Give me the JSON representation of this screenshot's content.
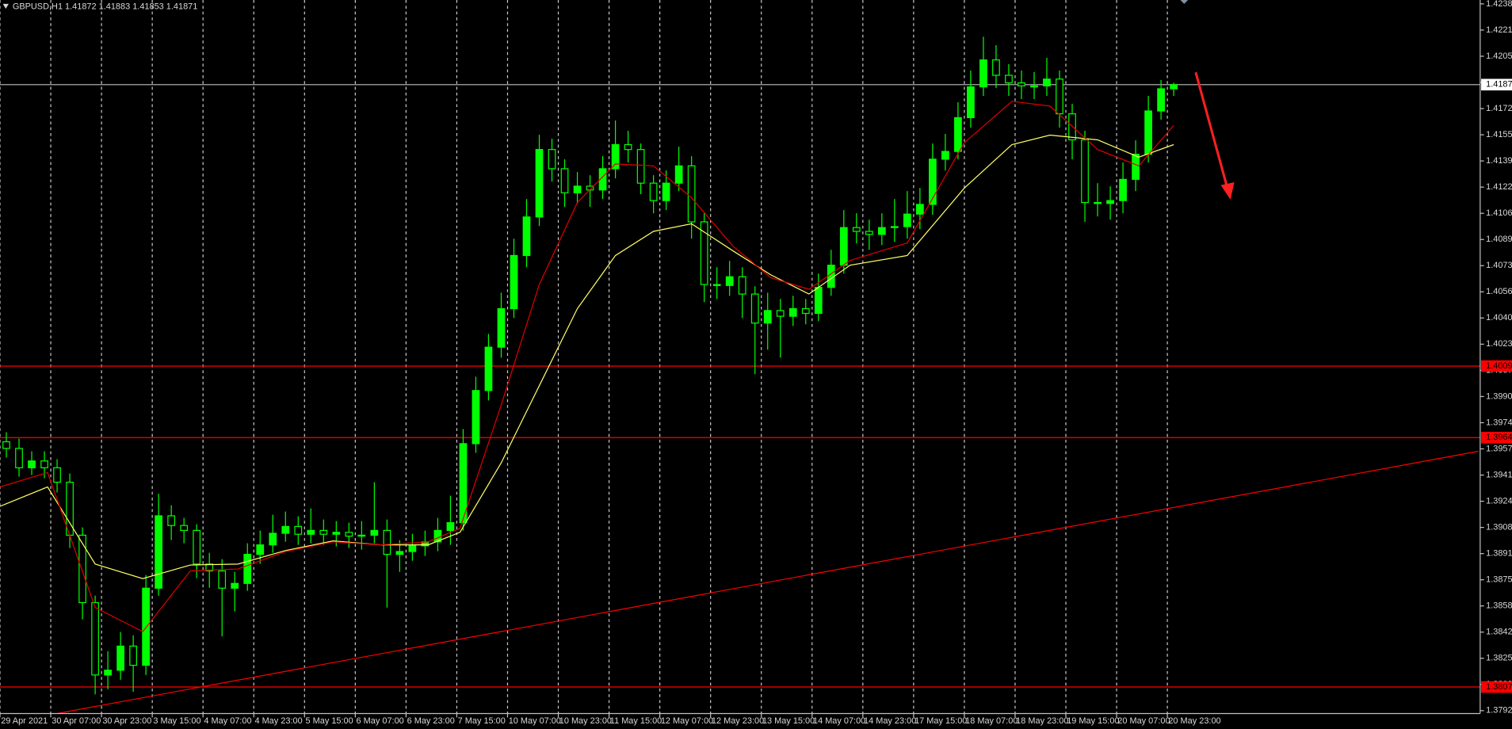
{
  "chart_data": {
    "type": "candlestick",
    "title": "GBPUSD,H1  1.41872 1.41883 1.41853 1.41871",
    "xlim": [
      0,
      466
    ],
    "ylim": [
      1.37925,
      1.4238
    ],
    "xticks": [
      {
        "value": 0,
        "label": "29 Apr 2021"
      },
      {
        "value": 16,
        "label": "30 Apr 07:00"
      },
      {
        "value": 32,
        "label": "30 Apr 23:00"
      },
      {
        "value": 48,
        "label": "3 May 15:00"
      },
      {
        "value": 64,
        "label": "4 May 07:00"
      },
      {
        "value": 80,
        "label": "4 May 23:00"
      },
      {
        "value": 96,
        "label": "5 May 15:00"
      },
      {
        "value": 112,
        "label": "6 May 07:00"
      },
      {
        "value": 128,
        "label": "6 May 23:00"
      },
      {
        "value": 144,
        "label": "7 May 15:00"
      },
      {
        "value": 160,
        "label": "10 May 07:00"
      },
      {
        "value": 176,
        "label": "10 May 23:00"
      },
      {
        "value": 192,
        "label": "11 May 15:00"
      },
      {
        "value": 208,
        "label": "12 May 07:00"
      },
      {
        "value": 224,
        "label": "12 May 23:00"
      },
      {
        "value": 240,
        "label": "13 May 15:00"
      },
      {
        "value": 256,
        "label": "14 May 07:00"
      },
      {
        "value": 272,
        "label": "14 May 23:00"
      },
      {
        "value": 288,
        "label": "17 May 15:00"
      },
      {
        "value": 304,
        "label": "18 May 07:00"
      },
      {
        "value": 320,
        "label": "18 May 23:00"
      },
      {
        "value": 336,
        "label": "19 May 15:00"
      },
      {
        "value": 352,
        "label": "20 May 07:00"
      },
      {
        "value": 368,
        "label": "20 May 23:00"
      }
    ],
    "yticks": [
      {
        "value": 1.4238,
        "label": "1.42380"
      },
      1.42215,
      {
        "value": 1.4205,
        "label": "1.42050"
      },
      1.41885,
      {
        "value": 1.4172,
        "label": "1.41720"
      },
      1.41555,
      {
        "value": 1.4139,
        "label": "1.41390"
      },
      1.41225,
      {
        "value": 1.4106,
        "label": "1.41060"
      },
      1.40895,
      {
        "value": 1.4073,
        "label": "1.40730"
      },
      1.40565,
      {
        "value": 1.404,
        "label": "1.40400"
      },
      1.40235,
      {
        "value": 1.4007,
        "label": "1.40070"
      },
      1.39905,
      {
        "value": 1.3974,
        "label": "1.39740"
      },
      1.39575,
      {
        "value": 1.3941,
        "label": "1.39410"
      },
      1.39245,
      {
        "value": 1.3908,
        "label": "1.39080"
      },
      1.38915,
      {
        "value": 1.3875,
        "label": "1.38750"
      },
      1.38585,
      {
        "value": 1.3842,
        "label": "1.38420"
      },
      1.38255,
      {
        "value": 1.3809,
        "label": "1.38090"
      },
      1.37925
    ],
    "grid": true,
    "candles": {
      "color": "#00ff00",
      "x": [
        2,
        6,
        10,
        14,
        18,
        22,
        26,
        30,
        34,
        38,
        42,
        46,
        50,
        54,
        58,
        62,
        66,
        70,
        74,
        78,
        82,
        86,
        90,
        94,
        98,
        102,
        106,
        110,
        114,
        118,
        122,
        126,
        130,
        134,
        138,
        142,
        146,
        150,
        154,
        158,
        162,
        166,
        170,
        174,
        178,
        182,
        186,
        190,
        194,
        198,
        202,
        206,
        210,
        214,
        218,
        222,
        226,
        230,
        234,
        238,
        242,
        246,
        250,
        254,
        258,
        262,
        266,
        270,
        274,
        278,
        282,
        286,
        290,
        294,
        298,
        302,
        306,
        310,
        314,
        318,
        322,
        326,
        330,
        334,
        338,
        342,
        346,
        350,
        354,
        358,
        362,
        366,
        370
      ],
      "open": [
        1.3962,
        1.39578,
        1.39456,
        1.39499,
        1.39456,
        1.39365,
        1.39031,
        1.38606,
        1.3815,
        1.3818,
        1.38332,
        1.38211,
        1.38697,
        1.39153,
        1.39092,
        1.39061,
        1.38849,
        1.38806,
        1.38697,
        1.38727,
        1.3891,
        1.3897,
        1.39043,
        1.39086,
        1.39037,
        1.39061,
        1.39037,
        1.39049,
        1.39025,
        1.39031,
        1.39061,
        1.3891,
        1.38928,
        1.38964,
        1.38989,
        1.39061,
        1.3911,
        1.39608,
        1.39943,
        1.40216,
        1.40459,
        1.40794,
        1.41037,
        1.41462,
        1.41341,
        1.41189,
        1.41231,
        1.41207,
        1.41341,
        1.41493,
        1.41462,
        1.4125,
        1.4114,
        1.4125,
        1.41359,
        1.41006,
        1.40611,
        1.40605,
        1.4066,
        1.40551,
        1.40368,
        1.40447,
        1.40411,
        1.40459,
        1.40429,
        1.40593,
        1.40733,
        1.4097,
        1.40946,
        1.40927,
        1.4097,
        1.40976,
        1.41055,
        1.41116,
        1.41401,
        1.4145,
        1.41663,
        1.41857,
        1.42027,
        1.4193,
        1.41882,
        1.41863,
        1.41863,
        1.41906,
        1.41687,
        1.41523,
        1.41128,
        1.41122,
        1.4114,
        1.41274,
        1.41432,
        1.41705,
        1.41845
      ],
      "high": [
        1.3968,
        1.3964,
        1.3956,
        1.3956,
        1.3951,
        1.3942,
        1.3908,
        1.3865,
        1.383,
        1.3842,
        1.384,
        1.3878,
        1.39292,
        1.3922,
        1.3914,
        1.391,
        1.3892,
        1.3888,
        1.388,
        1.3898,
        1.3906,
        1.3916,
        1.3918,
        1.3915,
        1.392,
        1.3913,
        1.3912,
        1.3911,
        1.3912,
        1.39365,
        1.3913,
        1.39,
        1.3904,
        1.3906,
        1.3914,
        1.3928,
        1.397,
        1.4003,
        1.403,
        1.4056,
        1.409,
        1.4115,
        1.41555,
        1.4153,
        1.414,
        1.4132,
        1.413,
        1.4142,
        1.41645,
        1.4158,
        1.415,
        1.413,
        1.4133,
        1.4148,
        1.4142,
        1.4106,
        1.4072,
        1.4076,
        1.4072,
        1.406,
        1.4056,
        1.4052,
        1.4054,
        1.4052,
        1.4068,
        1.4083,
        1.4108,
        1.4106,
        1.4102,
        1.4106,
        1.4115,
        1.412,
        1.4122,
        1.415,
        1.4156,
        1.4176,
        1.4196,
        1.42173,
        1.4212,
        1.42,
        1.4196,
        1.4195,
        1.4204,
        1.4196,
        1.4175,
        1.4158,
        1.4125,
        1.4123,
        1.4138,
        1.4152,
        1.418,
        1.419,
        1.41883
      ],
      "low": [
        1.3952,
        1.394,
        1.3941,
        1.3939,
        1.393,
        1.3895,
        1.385,
        1.38028,
        1.3806,
        1.3812,
        1.38044,
        1.3815,
        1.3865,
        1.39,
        1.3898,
        1.3876,
        1.387,
        1.38393,
        1.3855,
        1.3868,
        1.3885,
        1.3892,
        1.3899,
        1.3897,
        1.3898,
        1.3897,
        1.3896,
        1.3895,
        1.3894,
        1.3898,
        1.38575,
        1.388,
        1.3887,
        1.389,
        1.3893,
        1.3897,
        1.3906,
        1.3955,
        1.3988,
        1.4015,
        1.404,
        1.4072,
        1.4098,
        1.4126,
        1.411,
        1.4112,
        1.411,
        1.4115,
        1.4128,
        1.4138,
        1.4118,
        1.4106,
        1.4108,
        1.412,
        1.409,
        1.405,
        1.4052,
        1.4054,
        1.404,
        1.40046,
        1.402,
        1.4015,
        1.4035,
        1.4036,
        1.4038,
        1.4054,
        1.4068,
        1.4087,
        1.4083,
        1.4086,
        1.4088,
        1.409,
        1.4096,
        1.4105,
        1.4133,
        1.414,
        1.416,
        1.418,
        1.4185,
        1.418,
        1.4178,
        1.4178,
        1.418,
        1.416,
        1.414,
        1.41006,
        1.4104,
        1.4102,
        1.4106,
        1.412,
        1.4138,
        1.4165,
        1.418
      ],
      "close": [
        1.39578,
        1.39456,
        1.39499,
        1.39456,
        1.39365,
        1.39031,
        1.38606,
        1.3815,
        1.3818,
        1.38332,
        1.38211,
        1.38697,
        1.39153,
        1.39092,
        1.39061,
        1.38849,
        1.38806,
        1.38697,
        1.38727,
        1.3891,
        1.3897,
        1.39043,
        1.39086,
        1.39037,
        1.39061,
        1.39037,
        1.39049,
        1.39025,
        1.39031,
        1.39061,
        1.3891,
        1.38928,
        1.38964,
        1.38989,
        1.39061,
        1.3911,
        1.39608,
        1.39943,
        1.40216,
        1.40459,
        1.40794,
        1.41037,
        1.41462,
        1.41341,
        1.41189,
        1.41231,
        1.41207,
        1.41341,
        1.41493,
        1.41462,
        1.4125,
        1.4114,
        1.4125,
        1.41359,
        1.41006,
        1.40611,
        1.40605,
        1.4066,
        1.40551,
        1.40368,
        1.40447,
        1.40411,
        1.40459,
        1.40429,
        1.40593,
        1.40733,
        1.4097,
        1.40946,
        1.40927,
        1.4097,
        1.40976,
        1.41055,
        1.41116,
        1.41401,
        1.4145,
        1.41663,
        1.41857,
        1.42027,
        1.4193,
        1.41882,
        1.41863,
        1.41863,
        1.41906,
        1.41687,
        1.41523,
        1.41128,
        1.41122,
        1.4114,
        1.41274,
        1.41432,
        1.41705,
        1.41845,
        1.41871
      ]
    },
    "moving_averages": [
      {
        "color": "#ffff66",
        "x": [
          0,
          15,
          30,
          45,
          60,
          75,
          90,
          105,
          120,
          135,
          145,
          158,
          170,
          182,
          194,
          206,
          218,
          231,
          243,
          255,
          268,
          286,
          304,
          319,
          331,
          346,
          359,
          370
        ],
        "values": [
          1.39213,
          1.39335,
          1.38849,
          1.38757,
          1.38843,
          1.38849,
          1.38934,
          1.38995,
          1.3897,
          1.3897,
          1.39049,
          1.39487,
          1.39973,
          1.40459,
          1.40794,
          1.40946,
          1.40994,
          1.40824,
          1.40672,
          1.40551,
          1.40733,
          1.40794,
          1.41219,
          1.41493,
          1.41553,
          1.41523,
          1.41414,
          1.41493
        ]
      },
      {
        "color": "#e00000",
        "x": [
          0,
          15,
          30,
          45,
          60,
          75,
          90,
          105,
          120,
          135,
          145,
          158,
          170,
          182,
          194,
          206,
          218,
          231,
          243,
          255,
          268,
          286,
          304,
          319,
          331,
          346,
          359,
          370
        ],
        "values": [
          1.39335,
          1.39426,
          1.38575,
          1.38423,
          1.38806,
          1.38818,
          1.38928,
          1.38989,
          1.3897,
          1.38989,
          1.39074,
          1.39852,
          1.40611,
          1.41128,
          1.41371,
          1.41359,
          1.41158,
          1.40854,
          1.40654,
          1.40581,
          1.40763,
          1.40873,
          1.41505,
          1.41766,
          1.41736,
          1.41462,
          1.41359,
          1.41614
        ]
      }
    ],
    "hlines": [
      {
        "value": 1.41871,
        "color": "#c0c0c0"
      },
      {
        "value": 1.40097,
        "color": "#ff0000"
      },
      {
        "value": 1.39646,
        "color": "#ff0000"
      },
      {
        "value": 1.38074,
        "color": "#ff0000"
      }
    ],
    "trendline": {
      "color": "#ff0000",
      "x": [
        18,
        466
      ],
      "y": [
        1.37907,
        1.3956
      ]
    }
  }
}
